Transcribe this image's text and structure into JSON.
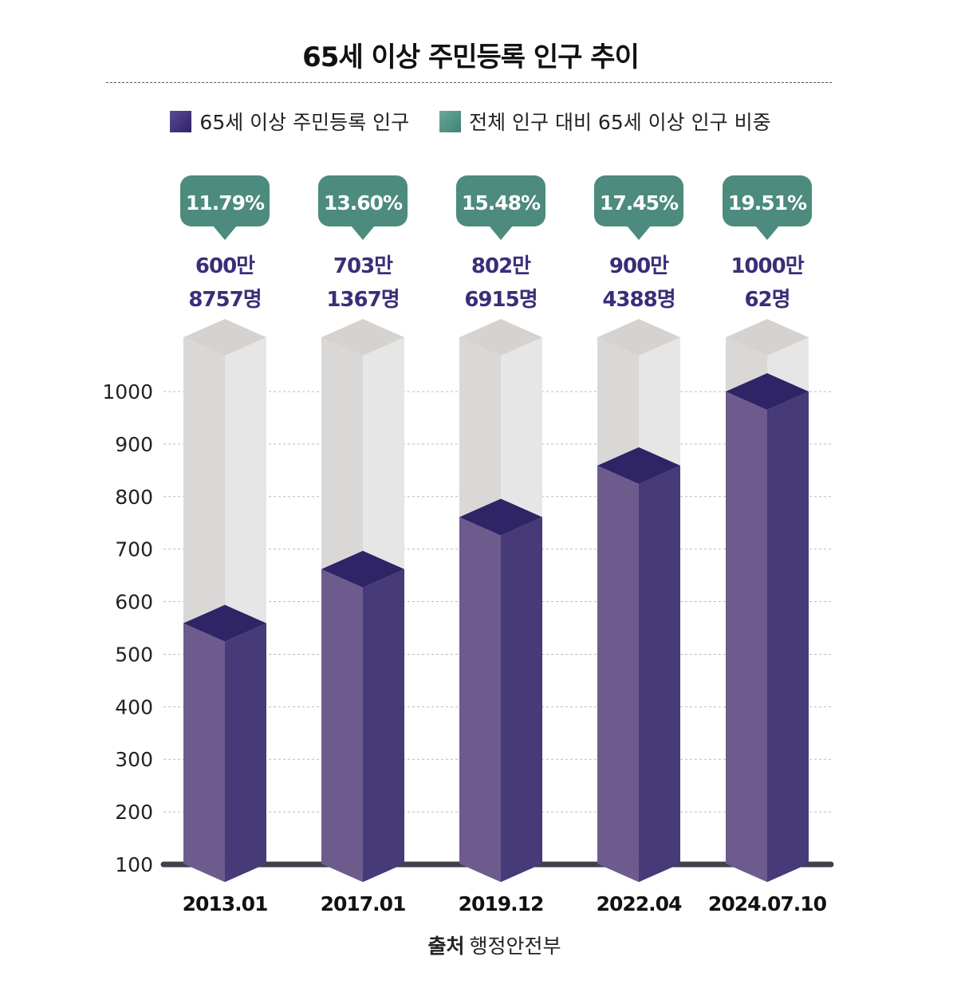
{
  "title": "65세 이상 주민등록 인구 추이",
  "legend": {
    "population": "65세 이상 주민등록 인구",
    "ratio": "전체 인구 대비 65세 이상 인구 비중"
  },
  "source": {
    "label": "출처",
    "value": "행정안전부"
  },
  "colors": {
    "bar_front": "#6e5b8e",
    "bar_side": "#473a78",
    "bar_top": "#2f2466",
    "ghost_front": "#dad8d6",
    "ghost_side": "#e6e6e6",
    "ghost_top": "#d5d2cf",
    "bubble": "#4c8b7d",
    "value_text": "#3a2e78",
    "baseline": "#3d4149",
    "grid": "#bbbbbb"
  },
  "chart_data": {
    "type": "bar",
    "title": "65세 이상 주민등록 인구 추이",
    "categories": [
      "2013.01",
      "2017.01",
      "2019.12",
      "2022.04",
      "2024.07.10"
    ],
    "series": [
      {
        "name": "65세 이상 주민등록 인구",
        "unit": "만",
        "values": [
          600,
          703,
          802,
          900,
          1000
        ]
      },
      {
        "name": "전체 인구 대비 65세 이상 인구 비중",
        "unit": "%",
        "values": [
          11.79,
          13.6,
          15.48,
          17.45,
          19.51
        ]
      }
    ],
    "value_labels": [
      [
        "600만",
        "8757명"
      ],
      [
        "703만",
        "1367명"
      ],
      [
        "802만",
        "6915명"
      ],
      [
        "900만",
        "4388명"
      ],
      [
        "1000만",
        "62명"
      ]
    ],
    "ratio_labels": [
      "11.79%",
      "13.60%",
      "15.48%",
      "17.45%",
      "19.51%"
    ],
    "yticks": [
      100,
      200,
      300,
      400,
      500,
      600,
      700,
      800,
      900,
      1000
    ],
    "ylim": [
      100,
      1000
    ],
    "grid": true,
    "legend_position": "top"
  }
}
